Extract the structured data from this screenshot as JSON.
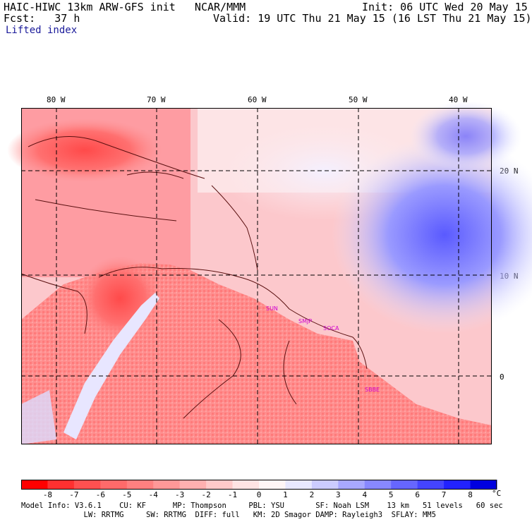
{
  "header": {
    "title": "HAIC-HIWC 13km ARW-GFS init   NCAR/MMM",
    "init": "Init: 06 UTC Wed 20 May 15",
    "fcst": "Fcst:   37 h",
    "valid": "Valid: 19 UTC Thu 21 May 15 (16 LST Thu 21 May 15)",
    "field": "Lifted index"
  },
  "map": {
    "lon_labels": [
      "80 W",
      "70 W",
      "60 W",
      "50 W",
      "40 W"
    ],
    "lat_labels": [
      "20 N",
      "10 N",
      "0"
    ],
    "stations": [
      "SUN",
      "SMJP",
      "SOCA",
      "SBBE"
    ]
  },
  "colorbar": {
    "ticks": [
      "-8",
      "-7",
      "-6",
      "-5",
      "-4",
      "-3",
      "-2",
      "-1",
      "0",
      "1",
      "2",
      "3",
      "4",
      "5",
      "6",
      "7",
      "8"
    ],
    "unit": "°C",
    "colors": [
      "#ff0000",
      "#ff3030",
      "#ff5050",
      "#ff6a6a",
      "#ff8080",
      "#ff9898",
      "#ffb0b0",
      "#ffcaca",
      "#ffe4e4",
      "#fff6f6",
      "#e8e8ff",
      "#ccccff",
      "#a8a8ff",
      "#8888ff",
      "#6666ff",
      "#4444ff",
      "#2222ff",
      "#0000e0"
    ]
  },
  "info": {
    "line1": "Model Info: V3.6.1    CU: KF      MP: Thompson     PBL: YSU       SF: Noah LSM    13 km   51 levels   60 sec",
    "line2": "              LW: RRTMG     SW: RRTMG  DIFF: full   KM: 2D Smagor DAMP: Rayleigh3  SFLAY: MM5"
  }
}
